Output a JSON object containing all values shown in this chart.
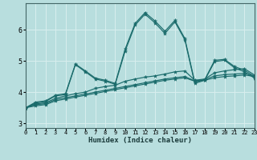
{
  "xlabel": "Humidex (Indice chaleur)",
  "xlim": [
    0,
    23
  ],
  "ylim": [
    2.85,
    6.85
  ],
  "yticks": [
    3,
    4,
    5,
    6
  ],
  "xticks": [
    0,
    1,
    2,
    3,
    4,
    5,
    6,
    7,
    8,
    9,
    10,
    11,
    12,
    13,
    14,
    15,
    16,
    17,
    18,
    19,
    20,
    21,
    22,
    23
  ],
  "bg_color": "#b8dede",
  "grid_color": "#d8eeee",
  "line_color": "#1a6b6b",
  "lines": [
    [
      3.5,
      3.68,
      3.72,
      3.9,
      3.95,
      4.9,
      4.68,
      4.45,
      4.38,
      4.28,
      5.38,
      6.2,
      6.55,
      6.28,
      5.95,
      6.3,
      5.72,
      4.32,
      4.4,
      5.02,
      5.05,
      4.82,
      4.7,
      4.5
    ],
    [
      3.5,
      3.65,
      3.7,
      3.88,
      3.92,
      4.88,
      4.65,
      4.42,
      4.35,
      4.25,
      5.32,
      6.15,
      6.5,
      6.22,
      5.88,
      6.25,
      5.68,
      4.28,
      4.38,
      4.98,
      5.02,
      4.78,
      4.65,
      4.45
    ],
    [
      3.5,
      3.62,
      3.66,
      3.8,
      3.88,
      3.95,
      4.0,
      4.12,
      4.18,
      4.22,
      4.35,
      4.42,
      4.48,
      4.52,
      4.58,
      4.65,
      4.68,
      4.38,
      4.42,
      4.62,
      4.68,
      4.72,
      4.75,
      4.55
    ],
    [
      3.5,
      3.6,
      3.63,
      3.76,
      3.82,
      3.88,
      3.94,
      4.0,
      4.06,
      4.12,
      4.18,
      4.24,
      4.3,
      4.36,
      4.42,
      4.46,
      4.5,
      4.36,
      4.4,
      4.52,
      4.56,
      4.58,
      4.6,
      4.52
    ],
    [
      3.5,
      3.56,
      3.6,
      3.72,
      3.78,
      3.84,
      3.9,
      3.96,
      4.02,
      4.08,
      4.14,
      4.2,
      4.26,
      4.32,
      4.38,
      4.42,
      4.46,
      4.35,
      4.38,
      4.46,
      4.5,
      4.52,
      4.55,
      4.5
    ]
  ]
}
